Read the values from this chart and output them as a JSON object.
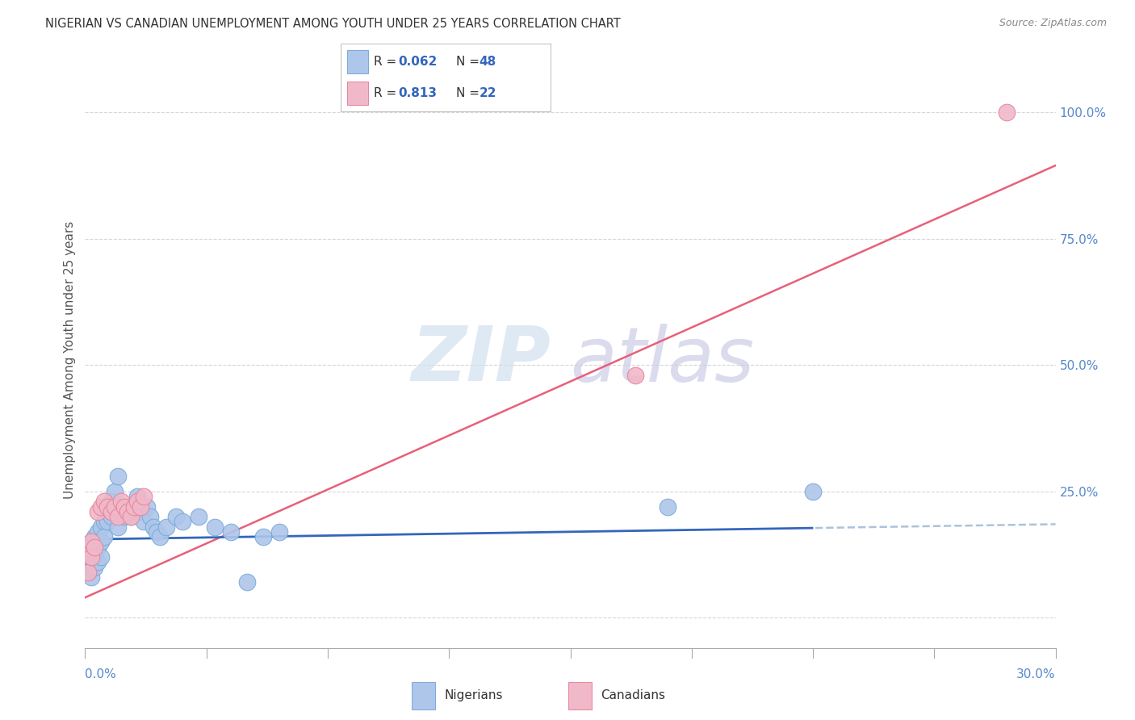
{
  "title": "NIGERIAN VS CANADIAN UNEMPLOYMENT AMONG YOUTH UNDER 25 YEARS CORRELATION CHART",
  "source": "Source: ZipAtlas.com",
  "ylabel": "Unemployment Among Youth under 25 years",
  "nigerian_R": "0.062",
  "nigerian_N": "48",
  "canadian_R": "0.813",
  "canadian_N": "22",
  "nigerian_color": "#aec6ea",
  "nigerian_edge": "#7aaad8",
  "canadian_color": "#f0b8c8",
  "canadian_edge": "#e8849c",
  "nigerian_line_color": "#3366bb",
  "canadian_line_color": "#e8607a",
  "dashed_line_color": "#88aacc",
  "legend_text_color": "#3366bb",
  "title_color": "#333333",
  "axis_label_color": "#5588cc",
  "source_color": "#888888",
  "grid_color": "#cccccc",
  "xmin": 0.0,
  "xmax": 0.3,
  "ymin": -0.06,
  "ymax": 1.08,
  "nigerian_x": [
    0.001,
    0.001,
    0.001,
    0.002,
    0.002,
    0.002,
    0.003,
    0.003,
    0.003,
    0.004,
    0.004,
    0.004,
    0.005,
    0.005,
    0.005,
    0.006,
    0.006,
    0.007,
    0.007,
    0.008,
    0.008,
    0.009,
    0.01,
    0.01,
    0.011,
    0.012,
    0.013,
    0.014,
    0.015,
    0.016,
    0.017,
    0.018,
    0.019,
    0.02,
    0.021,
    0.022,
    0.023,
    0.025,
    0.028,
    0.03,
    0.035,
    0.04,
    0.045,
    0.05,
    0.055,
    0.06,
    0.18,
    0.225
  ],
  "nigerian_y": [
    0.14,
    0.11,
    0.09,
    0.15,
    0.12,
    0.08,
    0.16,
    0.13,
    0.1,
    0.17,
    0.14,
    0.11,
    0.18,
    0.15,
    0.12,
    0.19,
    0.16,
    0.22,
    0.19,
    0.23,
    0.2,
    0.25,
    0.28,
    0.18,
    0.22,
    0.2,
    0.21,
    0.2,
    0.22,
    0.24,
    0.21,
    0.19,
    0.22,
    0.2,
    0.18,
    0.17,
    0.16,
    0.18,
    0.2,
    0.19,
    0.2,
    0.18,
    0.17,
    0.07,
    0.16,
    0.17,
    0.22,
    0.25
  ],
  "canadian_x": [
    0.001,
    0.001,
    0.002,
    0.002,
    0.003,
    0.004,
    0.005,
    0.006,
    0.007,
    0.008,
    0.009,
    0.01,
    0.011,
    0.012,
    0.013,
    0.014,
    0.015,
    0.016,
    0.017,
    0.018,
    0.17,
    0.285
  ],
  "canadian_y": [
    0.13,
    0.09,
    0.15,
    0.12,
    0.14,
    0.21,
    0.22,
    0.23,
    0.22,
    0.21,
    0.22,
    0.2,
    0.23,
    0.22,
    0.21,
    0.2,
    0.22,
    0.23,
    0.22,
    0.24,
    0.48,
    1.0
  ]
}
